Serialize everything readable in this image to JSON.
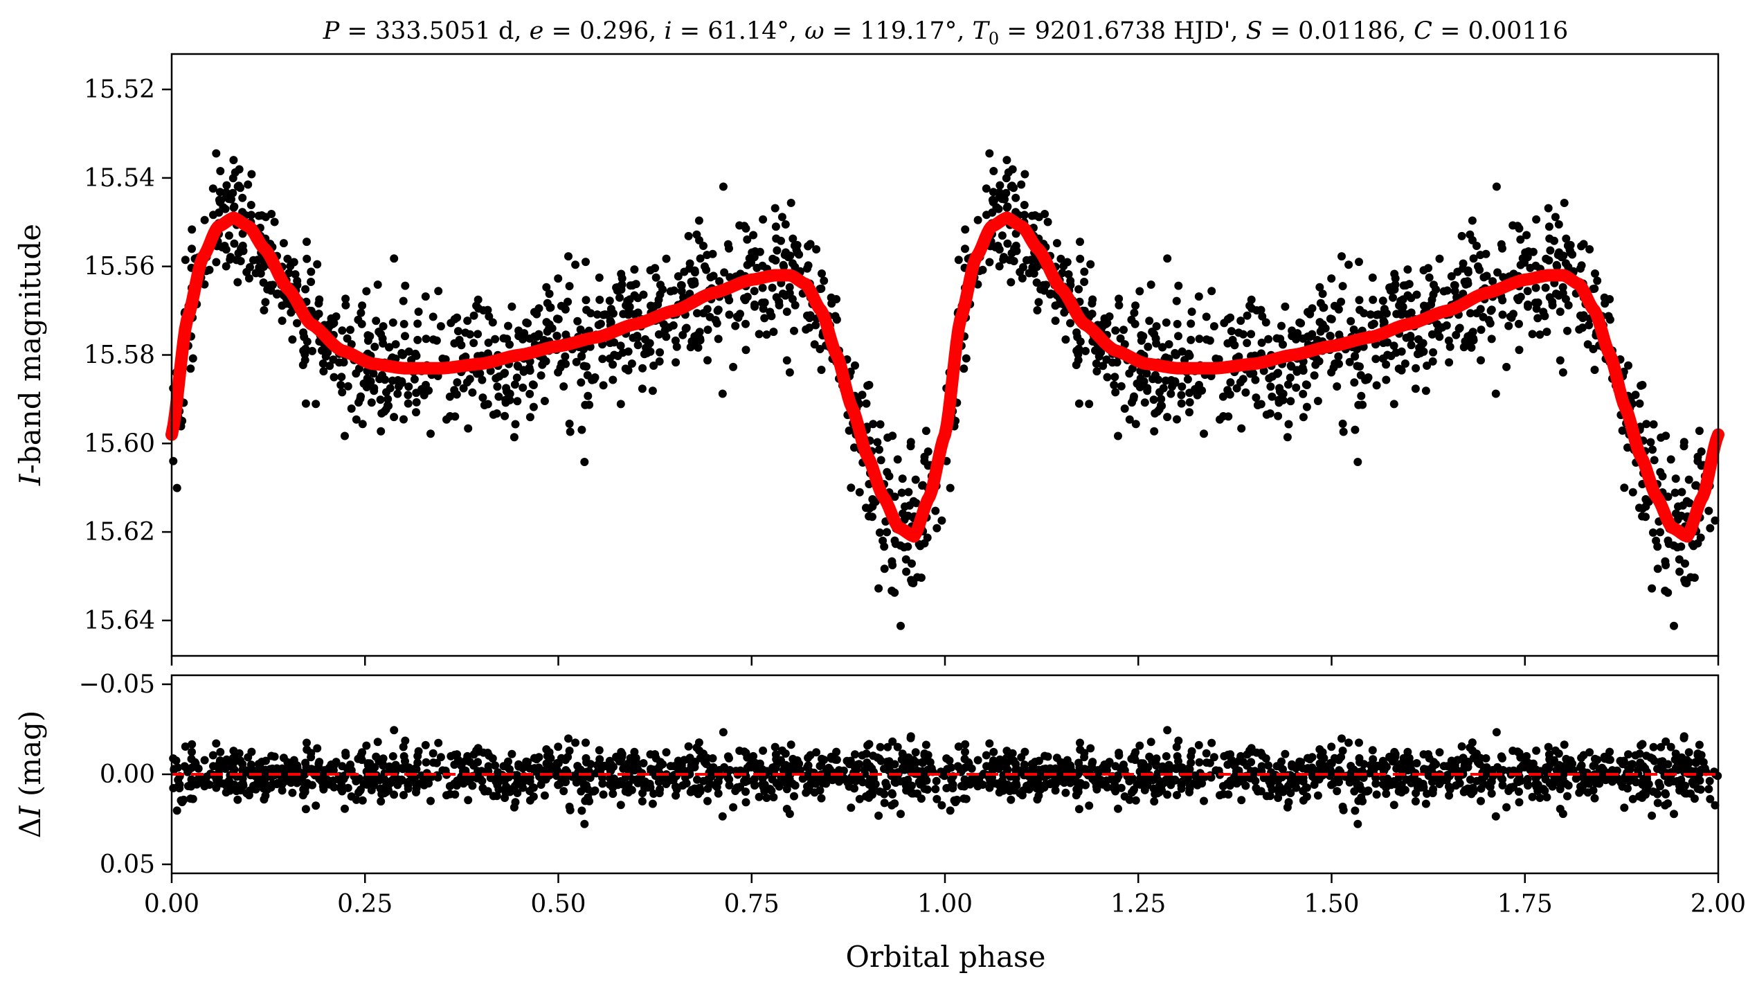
{
  "chart_data": [
    {
      "type": "scatter",
      "panel": "top",
      "title": "P = 333.5051 d, e = 0.296, i = 61.14°, ω = 119.17°, T0 = 9201.6738 HJD', S = 0.01186, C = 0.00116",
      "title_parts": {
        "p_sym": "P",
        "p_val": " = 333.5051 d, ",
        "e_sym": "e",
        "e_val": " = 0.296, ",
        "i_sym": "i",
        "i_val": " = 61.14°, ",
        "w_sym": "ω",
        "w_val": " = 119.17°, ",
        "t_sym": "T",
        "t_sub": "0",
        "t_val": " = 9201.6738 HJD', ",
        "s_sym": "S",
        "s_val": " = 0.01186, ",
        "c_sym": "C",
        "c_val": " = 0.00116"
      },
      "xlabel": "",
      "ylabel": "I-band magnitude",
      "ylabel_italic": "I",
      "ylabel_rest": "-band magnitude",
      "xlim": [
        0.0,
        2.0
      ],
      "ylim": [
        15.648,
        15.512
      ],
      "y_inverted": true,
      "yticks": [
        15.52,
        15.54,
        15.56,
        15.58,
        15.6,
        15.62,
        15.64
      ],
      "ytick_labels": [
        "15.52",
        "15.54",
        "15.56",
        "15.58",
        "15.60",
        "15.62",
        "15.64"
      ],
      "xticks": [
        0.0,
        0.25,
        0.5,
        0.75,
        1.0,
        1.25,
        1.5,
        1.75,
        2.0
      ],
      "grid": false,
      "series": [
        {
          "kind": "points",
          "color": "#000000",
          "n_per_cycle": 1050,
          "scatter_sigma": 0.0085
        },
        {
          "kind": "model-line",
          "color": "#ff0000",
          "model_phase": [
            0.0,
            0.02,
            0.04,
            0.06,
            0.08,
            0.1,
            0.12,
            0.15,
            0.18,
            0.22,
            0.26,
            0.3,
            0.35,
            0.4,
            0.45,
            0.5,
            0.55,
            0.6,
            0.65,
            0.7,
            0.75,
            0.78,
            0.8,
            0.82,
            0.84,
            0.86,
            0.88,
            0.9,
            0.92,
            0.94,
            0.96,
            0.98,
            1.0
          ],
          "model_mag": [
            15.598,
            15.572,
            15.558,
            15.551,
            15.549,
            15.551,
            15.556,
            15.565,
            15.573,
            15.579,
            15.582,
            15.583,
            15.583,
            15.582,
            15.58,
            15.578,
            15.576,
            15.573,
            15.57,
            15.566,
            15.563,
            15.562,
            15.562,
            15.564,
            15.57,
            15.58,
            15.592,
            15.603,
            15.612,
            15.619,
            15.621,
            15.612,
            15.598
          ]
        }
      ]
    },
    {
      "type": "scatter",
      "panel": "bottom",
      "xlabel": "Orbital phase",
      "ylabel": "ΔI (mag)",
      "ylabel_delta": "Δ",
      "ylabel_italic": "I",
      "ylabel_rest": " (mag)",
      "xlim": [
        0.0,
        2.0
      ],
      "ylim": [
        0.055,
        -0.055
      ],
      "y_inverted": true,
      "yticks": [
        -0.05,
        0.0,
        0.05
      ],
      "ytick_labels": [
        "−0.05",
        "0.00",
        "0.05"
      ],
      "xticks": [
        0.0,
        0.25,
        0.5,
        0.75,
        1.0,
        1.25,
        1.5,
        1.75,
        2.0
      ],
      "xtick_labels": [
        "0.00",
        "0.25",
        "0.50",
        "0.75",
        "1.00",
        "1.25",
        "1.50",
        "1.75",
        "2.00"
      ],
      "reference_line": {
        "y": 0.0,
        "color": "#ff0000",
        "style": "dashed"
      },
      "grid": false,
      "series": [
        {
          "kind": "residual-points",
          "color": "#000000",
          "scatter_sigma": 0.0085
        }
      ]
    }
  ]
}
